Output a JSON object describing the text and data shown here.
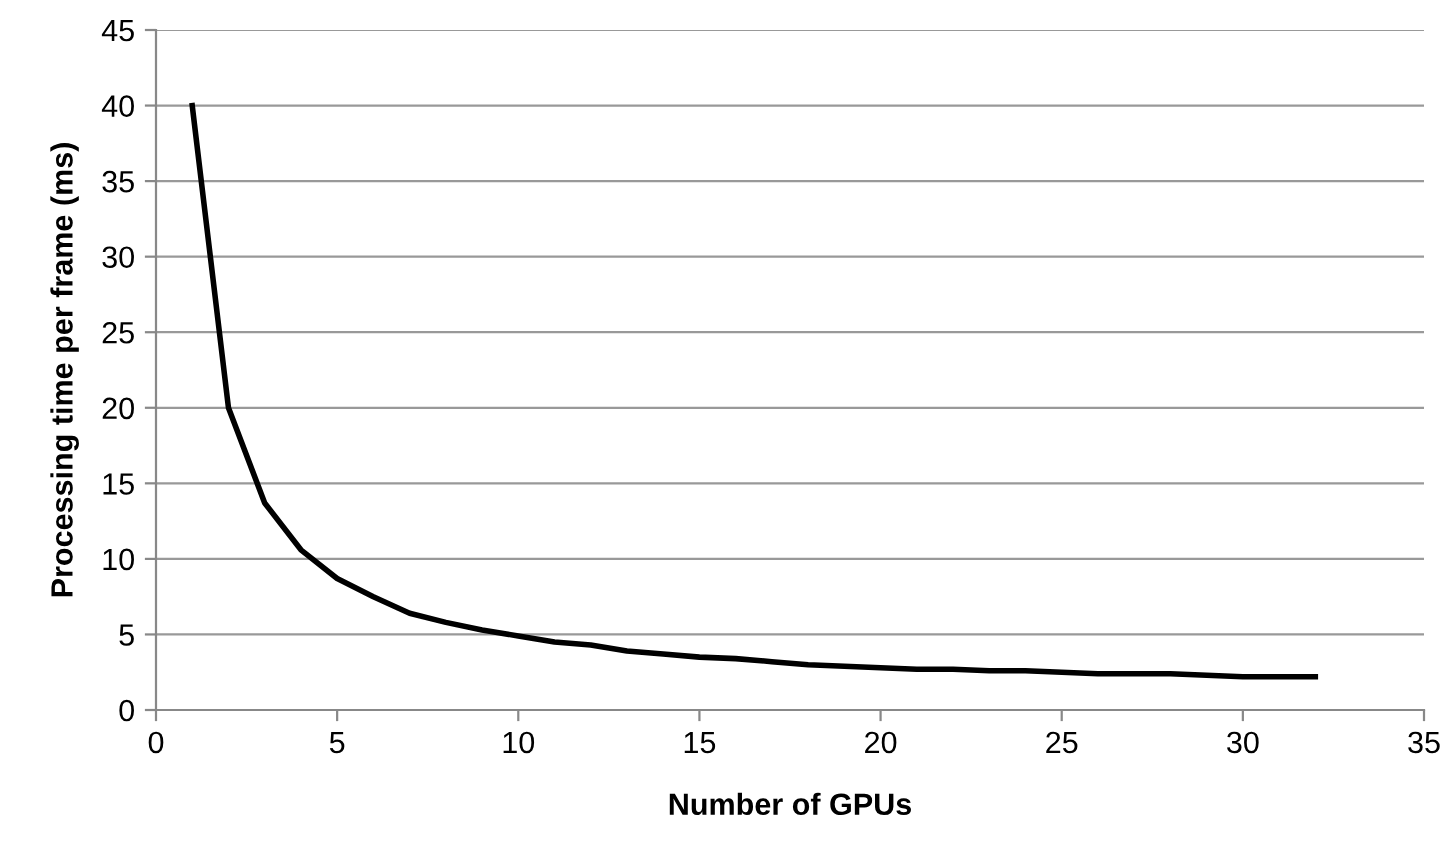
{
  "chart_data": {
    "type": "line",
    "xlabel": "Number of GPUs",
    "ylabel": "Processing time per frame (ms)",
    "x": [
      1,
      2,
      3,
      4,
      5,
      6,
      7,
      8,
      9,
      10,
      11,
      12,
      13,
      14,
      15,
      16,
      17,
      18,
      19,
      20,
      21,
      22,
      23,
      24,
      25,
      26,
      27,
      28,
      29,
      30,
      31,
      32
    ],
    "series": [
      {
        "color": "#000000",
        "values": [
          40,
          20,
          13.7,
          10.6,
          8.7,
          7.5,
          6.4,
          5.8,
          5.3,
          4.9,
          4.5,
          4.3,
          3.9,
          3.7,
          3.5,
          3.4,
          3.2,
          3.0,
          2.9,
          2.8,
          2.7,
          2.7,
          2.6,
          2.6,
          2.5,
          2.4,
          2.4,
          2.4,
          2.3,
          2.2,
          2.2,
          2.2
        ]
      }
    ],
    "xlim": [
      0,
      35
    ],
    "xticks": [
      0,
      5,
      10,
      15,
      20,
      25,
      30,
      35
    ],
    "ylim": [
      0,
      45
    ],
    "yticks": [
      0,
      5,
      10,
      15,
      20,
      25,
      30,
      35,
      40,
      45
    ],
    "grid": "y",
    "marker": "none",
    "line_style": "solid",
    "legend": false
  }
}
